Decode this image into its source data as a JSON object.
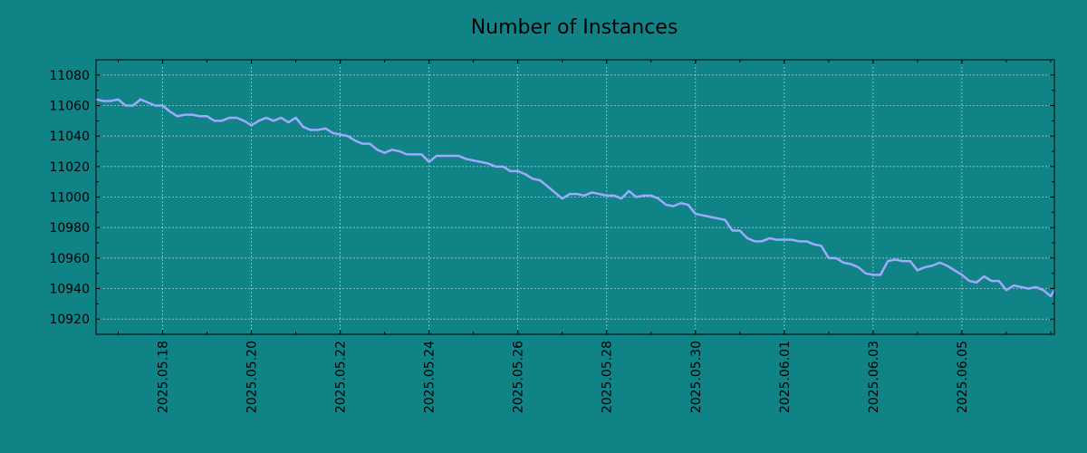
{
  "chart_data": {
    "type": "line",
    "title": "Number of Instances",
    "xlabel": "",
    "ylabel": "",
    "x_start": "2025.05.16 12:00",
    "x_end": "2025.06.07 02:00",
    "xlim": [
      "2025.05.16 12:00",
      "2025.06.07 02:00"
    ],
    "ylim": [
      10910,
      11090
    ],
    "yticks": [
      10920,
      10940,
      10960,
      10980,
      11000,
      11020,
      11040,
      11060,
      11080
    ],
    "xticks": [
      "2025.05.18",
      "2025.05.20",
      "2025.05.22",
      "2025.05.24",
      "2025.05.26",
      "2025.05.28",
      "2025.05.30",
      "2025.06.01",
      "2025.06.03",
      "2025.06.05"
    ],
    "grid": true,
    "legend": "none",
    "line_color": "#a0a8ff",
    "background_color": "#108387",
    "series": [
      {
        "x": [
          "2025.05.16 12:00",
          "2025.05.16 16:00",
          "2025.05.16 20:00",
          "2025.05.17 00:00",
          "2025.05.17 04:00",
          "2025.05.17 08:00",
          "2025.05.17 12:00",
          "2025.05.17 16:00",
          "2025.05.17 20:00",
          "2025.05.18 00:00",
          "2025.05.18 04:00",
          "2025.05.18 08:00",
          "2025.05.18 12:00",
          "2025.05.18 16:00",
          "2025.05.18 20:00",
          "2025.05.19 00:00",
          "2025.05.19 04:00",
          "2025.05.19 08:00",
          "2025.05.19 12:00",
          "2025.05.19 16:00",
          "2025.05.19 20:00",
          "2025.05.20 00:00",
          "2025.05.20 04:00",
          "2025.05.20 08:00",
          "2025.05.20 12:00",
          "2025.05.20 16:00",
          "2025.05.20 20:00",
          "2025.05.21 00:00",
          "2025.05.21 04:00",
          "2025.05.21 08:00",
          "2025.05.21 12:00",
          "2025.05.21 16:00",
          "2025.05.21 20:00",
          "2025.05.22 00:00",
          "2025.05.22 04:00",
          "2025.05.22 08:00",
          "2025.05.22 12:00",
          "2025.05.22 16:00",
          "2025.05.22 20:00",
          "2025.05.23 00:00",
          "2025.05.23 04:00",
          "2025.05.23 08:00",
          "2025.05.23 12:00",
          "2025.05.23 16:00",
          "2025.05.23 20:00",
          "2025.05.24 00:00",
          "2025.05.24 04:00",
          "2025.05.24 08:00",
          "2025.05.24 12:00",
          "2025.05.24 16:00",
          "2025.05.24 20:00",
          "2025.05.25 00:00",
          "2025.05.25 04:00",
          "2025.05.25 08:00",
          "2025.05.25 12:00",
          "2025.05.25 16:00",
          "2025.05.25 20:00",
          "2025.05.26 00:00",
          "2025.05.26 04:00",
          "2025.05.26 08:00",
          "2025.05.26 12:00",
          "2025.05.26 16:00",
          "2025.05.26 20:00",
          "2025.05.27 00:00",
          "2025.05.27 04:00",
          "2025.05.27 08:00",
          "2025.05.27 12:00",
          "2025.05.27 16:00",
          "2025.05.27 20:00",
          "2025.05.28 00:00",
          "2025.05.28 04:00",
          "2025.05.28 08:00",
          "2025.05.28 12:00",
          "2025.05.28 16:00",
          "2025.05.28 20:00",
          "2025.05.29 00:00",
          "2025.05.29 04:00",
          "2025.05.29 08:00",
          "2025.05.29 12:00",
          "2025.05.29 16:00",
          "2025.05.29 20:00",
          "2025.05.30 00:00",
          "2025.05.30 04:00",
          "2025.05.30 08:00",
          "2025.05.30 12:00",
          "2025.05.30 16:00",
          "2025.05.30 20:00",
          "2025.05.31 00:00",
          "2025.05.31 04:00",
          "2025.05.31 08:00",
          "2025.05.31 12:00",
          "2025.05.31 16:00",
          "2025.05.31 20:00",
          "2025.06.01 00:00",
          "2025.06.01 04:00",
          "2025.06.01 08:00",
          "2025.06.01 12:00",
          "2025.06.01 16:00",
          "2025.06.01 20:00",
          "2025.06.02 00:00",
          "2025.06.02 04:00",
          "2025.06.02 08:00",
          "2025.06.02 12:00",
          "2025.06.02 16:00",
          "2025.06.02 20:00",
          "2025.06.03 00:00",
          "2025.06.03 04:00",
          "2025.06.03 08:00",
          "2025.06.03 12:00",
          "2025.06.03 16:00",
          "2025.06.03 20:00",
          "2025.06.04 00:00",
          "2025.06.04 04:00",
          "2025.06.04 08:00",
          "2025.06.04 12:00",
          "2025.06.04 16:00",
          "2025.06.04 20:00",
          "2025.06.05 00:00",
          "2025.06.05 04:00",
          "2025.06.05 08:00",
          "2025.06.05 12:00",
          "2025.06.05 16:00",
          "2025.06.05 20:00",
          "2025.06.06 00:00",
          "2025.06.06 04:00",
          "2025.06.06 08:00",
          "2025.06.06 12:00",
          "2025.06.06 16:00",
          "2025.06.06 20:00",
          "2025.06.07 00:00",
          "2025.06.07 02:00"
        ],
        "y": [
          11064,
          11063,
          11063,
          11064,
          11060,
          11060,
          11064,
          11062,
          11060,
          11060,
          11056,
          11053,
          11054,
          11054,
          11053,
          11053,
          11050,
          11050,
          11052,
          11052,
          11050,
          11047,
          11050,
          11052,
          11050,
          11052,
          11049,
          11052,
          11046,
          11044,
          11044,
          11045,
          11042,
          11041,
          11040,
          11037,
          11035,
          11035,
          11031,
          11029,
          11031,
          11030,
          11028,
          11028,
          11028,
          11023,
          11027,
          11027,
          11027,
          11027,
          11025,
          11024,
          11023,
          11022,
          11020,
          11020,
          11017,
          11017,
          11015,
          11012,
          11011,
          11007,
          11003,
          10999,
          11002,
          11002,
          11001,
          11003,
          11002,
          11001,
          11001,
          10999,
          11004,
          11000,
          11001,
          11001,
          10999,
          10995,
          10994,
          10996,
          10995,
          10989,
          10988,
          10987,
          10986,
          10985,
          10978,
          10978,
          10973,
          10971,
          10971,
          10973,
          10972,
          10972,
          10972,
          10971,
          10971,
          10969,
          10968,
          10960,
          10960,
          10957,
          10956,
          10954,
          10950,
          10949,
          10949,
          10958,
          10959,
          10958,
          10958,
          10952,
          10954,
          10955,
          10957,
          10955,
          10952,
          10949,
          10945,
          10944,
          10948,
          10945,
          10945,
          10939,
          10942,
          10941,
          10940,
          10941,
          10939,
          10935,
          10939
        ]
      }
    ]
  }
}
